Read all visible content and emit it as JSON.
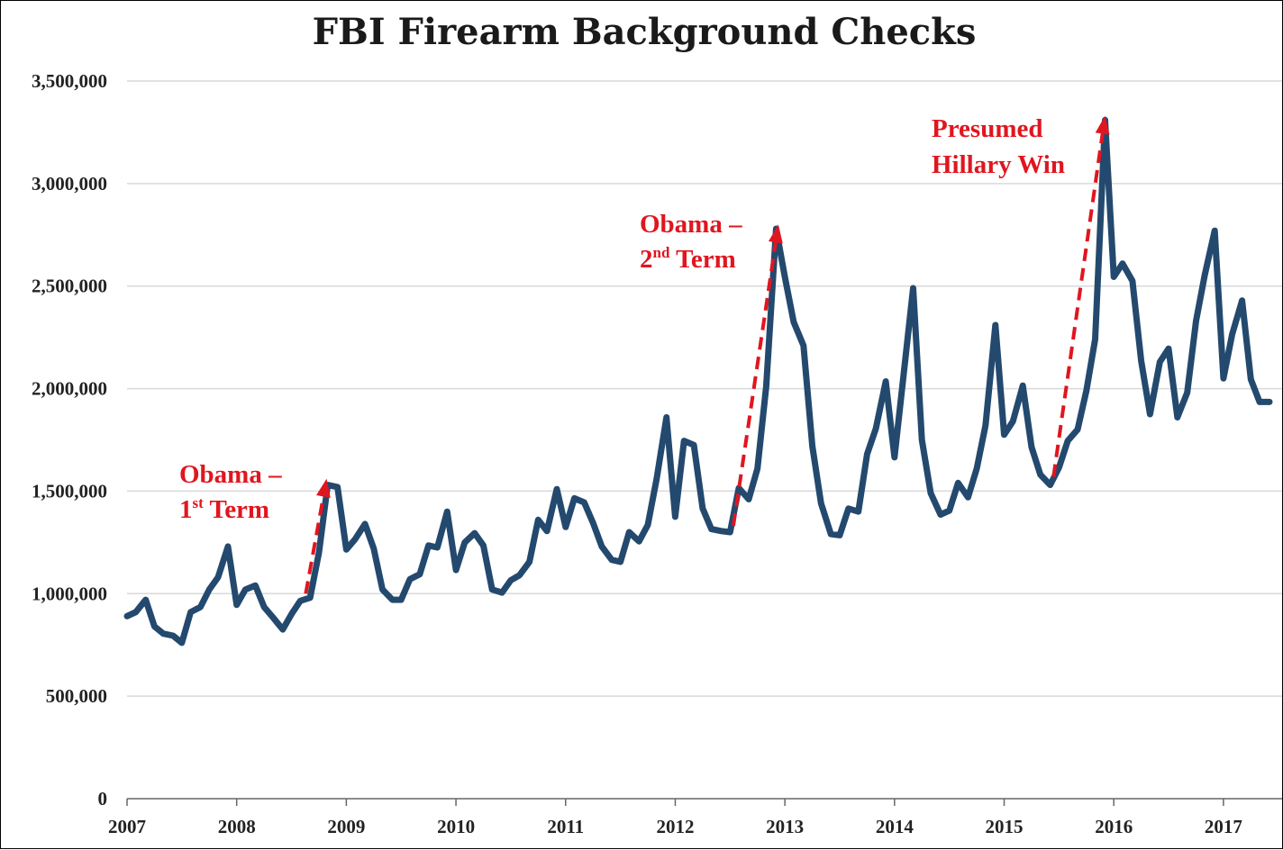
{
  "chart_data": {
    "type": "line",
    "title": "FBI Firearm Background Checks",
    "xlabel": "",
    "ylabel": "",
    "ylim": [
      0,
      3500000
    ],
    "yticks": [
      0,
      500000,
      1000000,
      1500000,
      2000000,
      2500000,
      3000000,
      3500000
    ],
    "ytick_labels": [
      "0",
      "500,000",
      "1,000,000",
      "1,500,000",
      "2,000,000",
      "2,500,000",
      "3,000,000",
      "3,500,000"
    ],
    "xlim": [
      2007,
      2017.42
    ],
    "xticks": [
      2007,
      2008,
      2009,
      2010,
      2011,
      2012,
      2013,
      2014,
      2015,
      2016,
      2017
    ],
    "xtick_labels": [
      "2007",
      "2008",
      "2009",
      "2010",
      "2011",
      "2012",
      "2013",
      "2014",
      "2015",
      "2016",
      "2017"
    ],
    "grid": true,
    "color": "#24496e",
    "series": [
      {
        "x": [
          2007.0,
          2007.08,
          2007.17,
          2007.25,
          2007.33,
          2007.42,
          2007.5,
          2007.58,
          2007.67,
          2007.75,
          2007.83,
          2007.92,
          2008.0,
          2008.08,
          2008.17,
          2008.25,
          2008.33,
          2008.42,
          2008.5,
          2008.58,
          2008.67,
          2008.75,
          2008.83,
          2008.92,
          2009.0,
          2009.08,
          2009.17,
          2009.25,
          2009.33,
          2009.42,
          2009.5,
          2009.58,
          2009.67,
          2009.75,
          2009.83,
          2009.92,
          2010.0,
          2010.08,
          2010.17,
          2010.25,
          2010.33,
          2010.42,
          2010.5,
          2010.58,
          2010.67,
          2010.75,
          2010.83,
          2010.92,
          2011.0,
          2011.08,
          2011.17,
          2011.25,
          2011.33,
          2011.42,
          2011.5,
          2011.58,
          2011.67,
          2011.75,
          2011.83,
          2011.92,
          2012.0,
          2012.08,
          2012.17,
          2012.25,
          2012.33,
          2012.42,
          2012.5,
          2012.58,
          2012.67,
          2012.75,
          2012.83,
          2012.92,
          2013.0,
          2013.08,
          2013.17,
          2013.25,
          2013.33,
          2013.42,
          2013.5,
          2013.58,
          2013.67,
          2013.75,
          2013.83,
          2013.92,
          2014.0,
          2014.08,
          2014.17,
          2014.25,
          2014.33,
          2014.42,
          2014.5,
          2014.58,
          2014.67,
          2014.75,
          2014.83,
          2014.92,
          2015.0,
          2015.08,
          2015.17,
          2015.25,
          2015.33,
          2015.42,
          2015.5,
          2015.58,
          2015.67,
          2015.75,
          2015.83,
          2015.92,
          2016.0,
          2016.08,
          2016.17,
          2016.25,
          2016.33,
          2016.42,
          2016.5,
          2016.58,
          2016.67,
          2016.75,
          2016.83,
          2016.92,
          2017.0,
          2017.08,
          2017.17,
          2017.25,
          2017.33,
          2017.42
        ],
        "values": [
          890000,
          910000,
          970000,
          840000,
          805000,
          795000,
          760000,
          910000,
          935000,
          1020000,
          1080000,
          1230000,
          945000,
          1020000,
          1040000,
          935000,
          885000,
          825000,
          900000,
          965000,
          980000,
          1200000,
          1530000,
          1520000,
          1215000,
          1265000,
          1340000,
          1220000,
          1020000,
          970000,
          970000,
          1070000,
          1095000,
          1235000,
          1225000,
          1400000,
          1115000,
          1250000,
          1295000,
          1235000,
          1020000,
          1005000,
          1065000,
          1090000,
          1155000,
          1360000,
          1305000,
          1510000,
          1325000,
          1465000,
          1445000,
          1345000,
          1230000,
          1165000,
          1155000,
          1300000,
          1255000,
          1335000,
          1560000,
          1860000,
          1375000,
          1745000,
          1725000,
          1415000,
          1315000,
          1305000,
          1300000,
          1515000,
          1460000,
          1610000,
          2010000,
          2780000,
          2545000,
          2325000,
          2210000,
          1720000,
          1440000,
          1290000,
          1285000,
          1415000,
          1400000,
          1680000,
          1805000,
          2035000,
          1665000,
          2055000,
          2490000,
          1750000,
          1490000,
          1385000,
          1405000,
          1540000,
          1470000,
          1610000,
          1820000,
          2310000,
          1775000,
          1840000,
          2015000,
          1715000,
          1580000,
          1530000,
          1615000,
          1745000,
          1800000,
          1990000,
          2240000,
          3310000,
          2545000,
          2610000,
          2525000,
          2135000,
          1875000,
          2130000,
          2195000,
          1860000,
          1980000,
          2330000,
          2555000,
          2770000,
          2050000,
          2265000,
          2430000,
          2045000,
          1935000,
          1935000
        ]
      }
    ],
    "annotations": [
      {
        "line1": "Obama –",
        "line2_num": "1",
        "line2_sup": "st",
        "line2_rest": " Term",
        "arrow_from": [
          2008.63,
          1000000
        ],
        "arrow_to": [
          2008.82,
          1560000
        ]
      },
      {
        "line1": "Obama –",
        "line2_num": "2",
        "line2_sup": "nd",
        "line2_rest": " Term",
        "arrow_from": [
          2012.53,
          1330000
        ],
        "arrow_to": [
          2012.94,
          2800000
        ]
      },
      {
        "line1": "Presumed",
        "line2_num": "Hillary Win",
        "line2_sup": "",
        "line2_rest": "",
        "arrow_from": [
          2015.45,
          1570000
        ],
        "arrow_to": [
          2015.92,
          3330000
        ]
      }
    ]
  }
}
